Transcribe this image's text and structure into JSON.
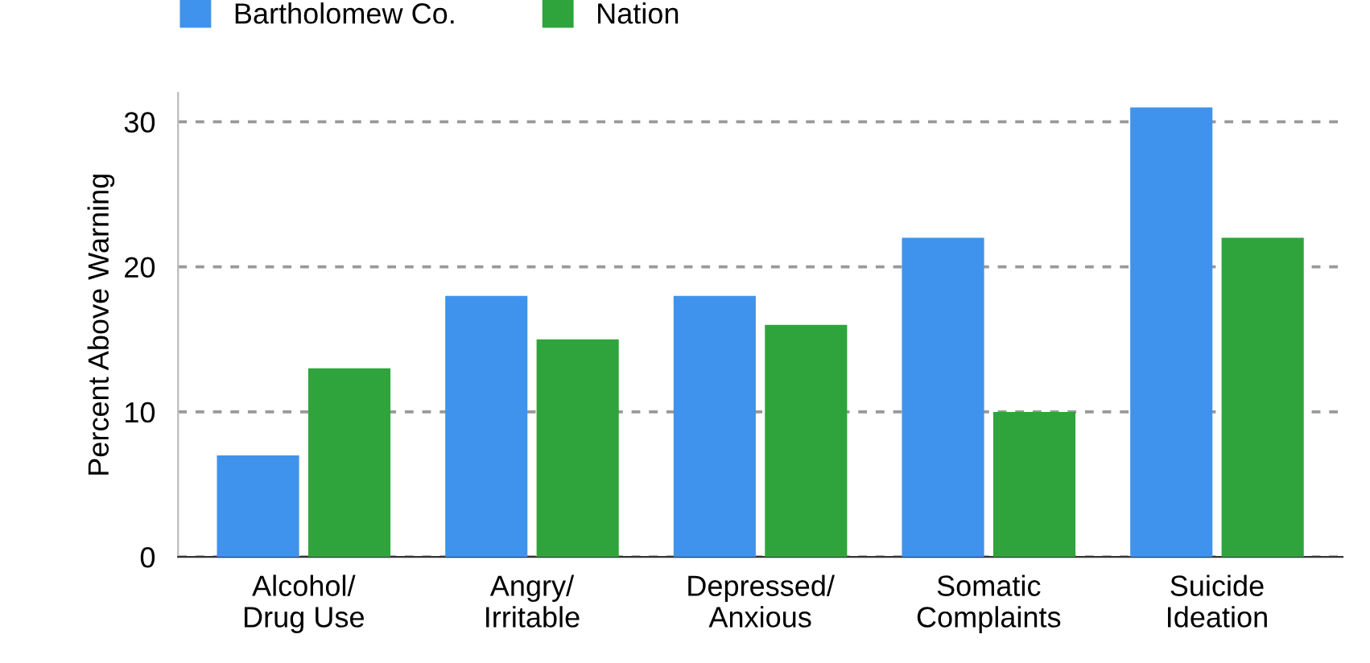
{
  "chart_data": {
    "type": "bar",
    "ylabel": "Percent Above Warning",
    "categories": [
      "Alcohol/\nDrug Use",
      "Angry/\nIrritable",
      "Depressed/\nAnxious",
      "Somatic\nComplaints",
      "Suicide\nIdeation"
    ],
    "series": [
      {
        "name": "Bartholomew Co.",
        "color": "#3f93ec",
        "values": [
          7,
          18,
          18,
          22,
          31
        ]
      },
      {
        "name": "Nation",
        "color": "#2fa43c",
        "values": [
          13,
          15,
          16,
          10,
          22
        ]
      }
    ],
    "ylim": [
      0,
      32
    ],
    "yticks": [
      0,
      10,
      20,
      30
    ],
    "grid": "y",
    "legend": "top left"
  }
}
